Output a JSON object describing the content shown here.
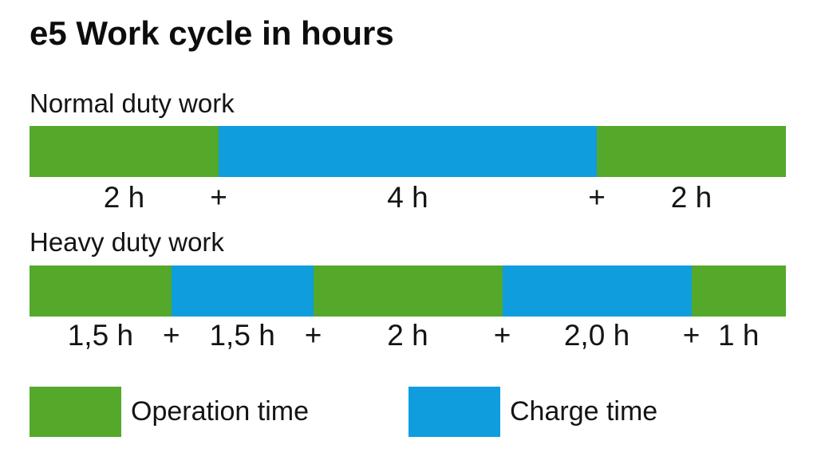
{
  "title": "e5 Work cycle in hours",
  "colors": {
    "operation": "#54a82a",
    "charge": "#0f9dde",
    "text": "#141414",
    "background": "#ffffff"
  },
  "chart_data": {
    "type": "bar",
    "subtype": "horizontal-stacked-timeline",
    "title": "e5 Work cycle in hours",
    "total_hours_per_bar": 8,
    "separator_symbol": "+",
    "legend_position": "bottom",
    "bars": [
      {
        "label": "Normal duty work",
        "segments": [
          {
            "type": "operation",
            "hours": 2,
            "label": "2 h"
          },
          {
            "type": "charge",
            "hours": 4,
            "label": "4 h"
          },
          {
            "type": "operation",
            "hours": 2,
            "label": "2 h"
          }
        ]
      },
      {
        "label": "Heavy duty work",
        "segments": [
          {
            "type": "operation",
            "hours": 1.5,
            "label": "1,5 h"
          },
          {
            "type": "charge",
            "hours": 1.5,
            "label": "1,5 h"
          },
          {
            "type": "operation",
            "hours": 2,
            "label": "2 h"
          },
          {
            "type": "charge",
            "hours": 2,
            "label": "2,0 h"
          },
          {
            "type": "operation",
            "hours": 1,
            "label": "1 h"
          }
        ]
      }
    ],
    "legend": [
      {
        "type": "operation",
        "label": "Operation time"
      },
      {
        "type": "charge",
        "label": "Charge time"
      }
    ]
  }
}
